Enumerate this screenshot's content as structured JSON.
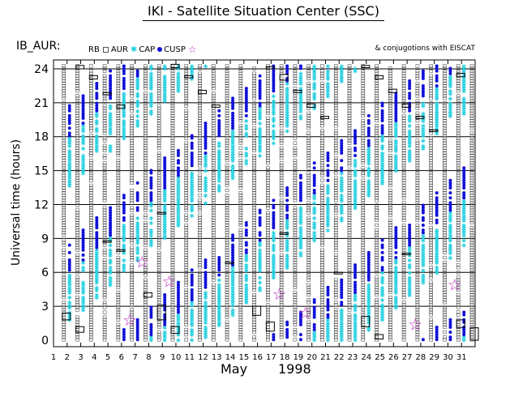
{
  "header": {
    "title": "IKI - Satellite Situation Center (SSC)",
    "station": "IB_AUR:",
    "conjugations_note": "& conjugotions with EISCAT"
  },
  "legend": {
    "items": [
      {
        "label": "RB",
        "symbol": "none"
      },
      {
        "label": "AUR",
        "symbol": "open-square-icon"
      },
      {
        "label": "CAP",
        "symbol": "cyan-asterisk-icon"
      },
      {
        "label": "CUSP",
        "symbol": "blue-dot-icon"
      },
      {
        "label": "",
        "symbol": "magenta-star-icon"
      }
    ]
  },
  "colors": {
    "cap": "#22cfe0",
    "cusp": "#1010d8",
    "aur": "#555555",
    "star": "#c030c0",
    "grid": "#000000"
  },
  "chart_data": {
    "type": "scatter",
    "title": "IKI - Satellite Situation Center (SSC)",
    "xlabel_month": "May",
    "xlabel_year": "1998",
    "ylabel": "Universal time (hours)",
    "xlim": [
      1,
      32
    ],
    "ylim": [
      0,
      24.5
    ],
    "x_ticks": [
      "1",
      "2",
      "3",
      "4",
      "5",
      "6",
      "7",
      "8",
      "9",
      "10",
      "11",
      "12",
      "13",
      "14",
      "15",
      "16",
      "17",
      "18",
      "19",
      "20",
      "21",
      "22",
      "23",
      "24",
      "25",
      "26",
      "27",
      "28",
      "29",
      "30",
      "31"
    ],
    "y_ticks": [
      0,
      3,
      6,
      9,
      12,
      15,
      18,
      21,
      24
    ],
    "grid": "horizontal",
    "series": [
      {
        "name": "AUR",
        "marker": "open-square",
        "days": [
          2,
          3,
          4,
          5,
          6,
          7,
          8,
          9,
          10,
          11,
          12,
          13,
          14,
          15,
          16,
          17,
          18,
          19,
          20,
          21,
          22,
          23,
          24,
          25,
          26,
          27,
          28,
          29,
          30,
          31,
          32
        ]
      },
      {
        "name": "CAP",
        "marker": "asterisk",
        "days": [
          2,
          3,
          4,
          5,
          6,
          7,
          8,
          9,
          10,
          11,
          12,
          13,
          14,
          15,
          16,
          17,
          18,
          19,
          20,
          21,
          22,
          23,
          24,
          25,
          26,
          27,
          28,
          29,
          30,
          31
        ]
      },
      {
        "name": "CUSP",
        "marker": "dot",
        "days": [
          2,
          3,
          4,
          5,
          6,
          7,
          8,
          9,
          10,
          11,
          12,
          13,
          14,
          15,
          16,
          17,
          18,
          19,
          20,
          21,
          22,
          23,
          24,
          25,
          26,
          27,
          28,
          29,
          30,
          31
        ]
      }
    ],
    "rb_intervals": [
      {
        "day": 2,
        "start": 1.8,
        "end": 2.4
      },
      {
        "day": 3,
        "start": 0.7,
        "end": 1.2
      },
      {
        "day": 3,
        "start": 24.0,
        "end": 24.3
      },
      {
        "day": 4,
        "start": 23.1,
        "end": 23.4
      },
      {
        "day": 5,
        "start": 21.7,
        "end": 21.9
      },
      {
        "day": 5,
        "start": 8.7,
        "end": 8.8
      },
      {
        "day": 6,
        "start": 20.5,
        "end": 20.8
      },
      {
        "day": 6,
        "start": 7.9,
        "end": 8.0
      },
      {
        "day": 8,
        "start": 3.8,
        "end": 4.2
      },
      {
        "day": 9,
        "start": 1.8,
        "end": 3.1
      },
      {
        "day": 9,
        "start": 11.2,
        "end": 11.3
      },
      {
        "day": 10,
        "start": 0.6,
        "end": 1.2
      },
      {
        "day": 10,
        "start": 24.1,
        "end": 24.4
      },
      {
        "day": 11,
        "start": 23.2,
        "end": 23.4
      },
      {
        "day": 12,
        "start": 21.8,
        "end": 22.1
      },
      {
        "day": 13,
        "start": 20.6,
        "end": 20.8
      },
      {
        "day": 14,
        "start": 6.8,
        "end": 6.9
      },
      {
        "day": 16,
        "start": 2.2,
        "end": 3.0
      },
      {
        "day": 17,
        "start": 0.8,
        "end": 1.6
      },
      {
        "day": 17,
        "start": 24.0,
        "end": 24.2
      },
      {
        "day": 18,
        "start": 23.0,
        "end": 23.5
      },
      {
        "day": 18,
        "start": 9.4,
        "end": 9.5
      },
      {
        "day": 19,
        "start": 21.9,
        "end": 22.1
      },
      {
        "day": 20,
        "start": 20.6,
        "end": 20.9
      },
      {
        "day": 21,
        "start": 19.6,
        "end": 19.8
      },
      {
        "day": 22,
        "start": 5.9,
        "end": 6.0
      },
      {
        "day": 24,
        "start": 1.2,
        "end": 2.1
      },
      {
        "day": 24,
        "start": 24.1,
        "end": 24.3
      },
      {
        "day": 25,
        "start": 0.1,
        "end": 0.5
      },
      {
        "day": 25,
        "start": 23.1,
        "end": 23.4
      },
      {
        "day": 26,
        "start": 21.9,
        "end": 22.2
      },
      {
        "day": 27,
        "start": 20.6,
        "end": 20.9
      },
      {
        "day": 27,
        "start": 7.6,
        "end": 7.7
      },
      {
        "day": 28,
        "start": 19.6,
        "end": 19.8
      },
      {
        "day": 29,
        "start": 18.5,
        "end": 18.6
      },
      {
        "day": 31,
        "start": 1.1,
        "end": 1.8
      },
      {
        "day": 31,
        "start": 23.3,
        "end": 23.6
      },
      {
        "day": 32,
        "start": 0.0,
        "end": 1.1
      }
    ],
    "eiscat_conjugations": [
      {
        "day": 6.6,
        "ut": 1.8
      },
      {
        "day": 7.5,
        "ut": 6.9
      },
      {
        "day": 9.5,
        "ut": 5.2
      },
      {
        "day": 17.6,
        "ut": 4.1
      },
      {
        "day": 19.5,
        "ut": 2.4
      },
      {
        "day": 27.6,
        "ut": 1.4
      },
      {
        "day": 30.5,
        "ut": 4.9
      }
    ]
  }
}
